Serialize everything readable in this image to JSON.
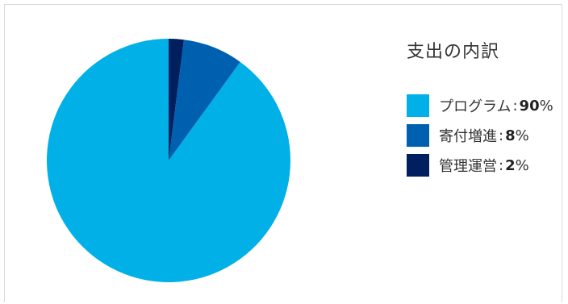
{
  "chart_data": {
    "type": "pie",
    "title": "支出の内訳",
    "slices": [
      {
        "label": "プログラム",
        "value": 90,
        "color": "#00b0e6"
      },
      {
        "label": "寄付増進",
        "value": 8,
        "color": "#0060b0"
      },
      {
        "label": "管理運営",
        "value": 2,
        "color": "#001f5e"
      }
    ],
    "unit": "%",
    "separator": ":",
    "legend_position": "right"
  }
}
